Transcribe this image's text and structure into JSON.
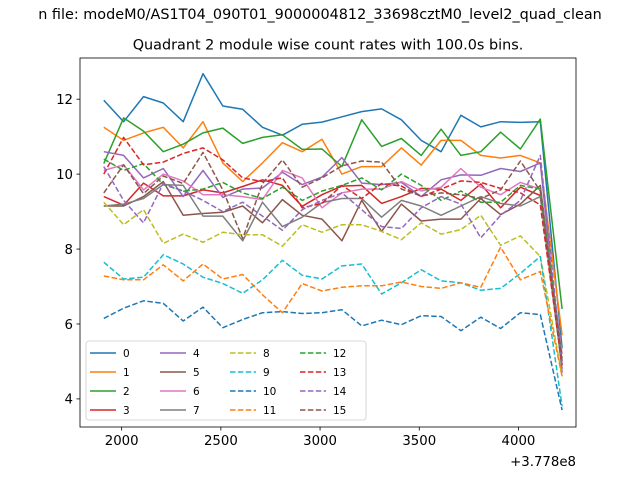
{
  "header": {
    "suptitle": "n file: modeM0/AS1T04_090T01_9000004812_33698cztM0_level2_quad_clean"
  },
  "chart_data": {
    "type": "line",
    "title": "Quadrant 2 module wise count rates with 100.0s bins.",
    "xlabel": "",
    "ylabel": "",
    "x_offset_label": "+3.778e8",
    "xlim": [
      1790,
      4290
    ],
    "ylim": [
      3.25,
      13.1
    ],
    "xticks": [
      2000,
      2500,
      3000,
      3500,
      4000
    ],
    "xtick_labels": [
      "2000",
      "2500",
      "3000",
      "3500",
      "4000"
    ],
    "yticks": [
      4,
      6,
      8,
      10,
      12
    ],
    "ytick_labels": [
      "4",
      "6",
      "8",
      "10",
      "12"
    ],
    "grid": false,
    "legend_position": "lower-left",
    "x": [
      1910,
      2010,
      2110,
      2210,
      2310,
      2410,
      2510,
      2610,
      2710,
      2810,
      2910,
      3010,
      3110,
      3210,
      3310,
      3410,
      3510,
      3610,
      3710,
      3810,
      3910,
      4010,
      4110,
      4220
    ],
    "series": [
      {
        "name": "0",
        "color": "#1f77b4",
        "dash": "solid",
        "values": [
          11.97,
          11.4,
          12.07,
          11.9,
          11.4,
          12.68,
          11.82,
          11.73,
          11.25,
          11.04,
          11.33,
          11.39,
          11.53,
          11.67,
          11.74,
          11.45,
          10.9,
          10.6,
          11.57,
          11.26,
          11.4,
          11.38,
          11.4,
          5.35
        ]
      },
      {
        "name": "1",
        "color": "#ff7f0e",
        "dash": "solid",
        "values": [
          11.25,
          10.9,
          11.1,
          11.25,
          10.7,
          11.4,
          10.3,
          9.8,
          10.3,
          10.84,
          10.6,
          10.93,
          10.0,
          10.2,
          10.2,
          10.7,
          10.24,
          10.9,
          10.9,
          10.5,
          10.43,
          10.5,
          10.3,
          5.7
        ]
      },
      {
        "name": "2",
        "color": "#2ca02c",
        "dash": "solid",
        "values": [
          10.28,
          11.5,
          11.15,
          10.6,
          10.8,
          11.1,
          11.23,
          10.82,
          10.98,
          11.05,
          10.66,
          10.67,
          10.2,
          11.45,
          10.74,
          10.95,
          10.5,
          11.2,
          10.5,
          10.6,
          11.12,
          10.67,
          11.47,
          6.4
        ]
      },
      {
        "name": "3",
        "color": "#d62728",
        "dash": "solid",
        "values": [
          9.4,
          9.17,
          9.76,
          9.42,
          9.42,
          9.58,
          9.5,
          9.67,
          9.85,
          9.7,
          9.14,
          9.45,
          9.68,
          9.7,
          9.22,
          9.4,
          9.62,
          9.6,
          9.3,
          9.74,
          9.1,
          9.65,
          9.43,
          4.9
        ]
      },
      {
        "name": "4",
        "color": "#9467bd",
        "dash": "solid",
        "values": [
          10.6,
          10.5,
          9.9,
          10.15,
          9.4,
          10.1,
          9.38,
          9.6,
          9.63,
          10.05,
          9.72,
          9.92,
          10.44,
          9.76,
          9.72,
          9.78,
          9.4,
          9.85,
          9.98,
          9.97,
          10.15,
          10.07,
          10.3,
          4.7
        ]
      },
      {
        "name": "5",
        "color": "#8c564b",
        "dash": "solid",
        "values": [
          9.15,
          9.15,
          9.4,
          9.8,
          8.9,
          8.95,
          8.98,
          9.15,
          8.7,
          9.32,
          8.9,
          8.8,
          8.22,
          9.3,
          8.47,
          9.2,
          8.75,
          8.8,
          8.8,
          9.35,
          8.92,
          9.2,
          9.7,
          5.0
        ]
      },
      {
        "name": "6",
        "color": "#e377c2",
        "dash": "solid",
        "values": [
          10.1,
          10.25,
          9.58,
          10.0,
          9.82,
          9.45,
          9.45,
          9.4,
          9.32,
          10.1,
          9.9,
          9.1,
          9.5,
          9.6,
          9.6,
          9.8,
          9.55,
          9.65,
          10.15,
          9.65,
          9.45,
          9.78,
          9.6,
          5.2
        ]
      },
      {
        "name": "7",
        "color": "#7f7f7f",
        "dash": "solid",
        "values": [
          9.15,
          9.2,
          9.35,
          9.72,
          9.7,
          8.88,
          8.88,
          8.22,
          9.25,
          8.6,
          8.85,
          9.24,
          9.35,
          9.35,
          8.85,
          9.3,
          9.15,
          8.9,
          9.15,
          9.4,
          9.22,
          9.15,
          9.4,
          4.8
        ]
      },
      {
        "name": "8",
        "color": "#bcbd22",
        "dash": "dashed",
        "values": [
          9.25,
          8.65,
          9.05,
          8.15,
          8.4,
          8.18,
          8.45,
          8.38,
          8.38,
          8.08,
          8.65,
          8.45,
          8.65,
          8.65,
          8.47,
          8.25,
          8.7,
          8.4,
          8.52,
          8.9,
          8.1,
          8.35,
          7.8,
          4.6
        ]
      },
      {
        "name": "9",
        "color": "#17becf",
        "dash": "dashed",
        "values": [
          7.65,
          7.2,
          7.25,
          7.85,
          7.6,
          7.25,
          7.08,
          6.82,
          7.18,
          7.7,
          7.3,
          7.2,
          7.55,
          7.6,
          6.8,
          7.1,
          7.45,
          7.15,
          7.1,
          6.9,
          6.95,
          7.35,
          7.8,
          3.8
        ]
      },
      {
        "name": "10",
        "color": "#1f77b4",
        "dash": "dashed",
        "values": [
          6.15,
          6.42,
          6.62,
          6.55,
          6.08,
          6.45,
          5.9,
          6.12,
          6.3,
          6.33,
          6.28,
          6.3,
          6.38,
          5.95,
          6.1,
          5.98,
          6.22,
          6.2,
          5.82,
          6.18,
          5.88,
          6.3,
          6.25,
          3.7
        ]
      },
      {
        "name": "11",
        "color": "#ff7f0e",
        "dash": "dashed",
        "values": [
          7.28,
          7.18,
          7.18,
          7.58,
          7.15,
          7.6,
          7.2,
          7.32,
          6.78,
          6.3,
          7.08,
          6.88,
          6.98,
          7.02,
          7.02,
          7.12,
          7.0,
          6.95,
          7.1,
          6.98,
          8.05,
          7.18,
          7.4,
          4.6
        ]
      },
      {
        "name": "12",
        "color": "#2ca02c",
        "dash": "dashed",
        "values": [
          10.4,
          10.1,
          10.28,
          9.72,
          9.55,
          9.6,
          9.78,
          9.5,
          9.35,
          9.65,
          9.3,
          9.55,
          9.7,
          9.9,
          9.58,
          10.0,
          9.7,
          9.3,
          9.55,
          9.25,
          9.25,
          9.7,
          9.6,
          5.1
        ]
      },
      {
        "name": "13",
        "color": "#d62728",
        "dash": "dashed",
        "values": [
          10.0,
          10.98,
          10.25,
          10.32,
          10.55,
          10.7,
          10.38,
          9.9,
          9.8,
          9.9,
          9.1,
          9.22,
          9.7,
          9.35,
          9.75,
          9.68,
          9.4,
          9.6,
          9.82,
          9.78,
          9.62,
          9.5,
          9.18,
          4.9
        ]
      },
      {
        "name": "14",
        "color": "#9467bd",
        "dash": "dashed",
        "values": [
          10.2,
          9.3,
          8.7,
          9.75,
          9.55,
          9.3,
          9.0,
          9.25,
          8.88,
          8.5,
          9.05,
          9.3,
          9.5,
          9.05,
          8.6,
          8.55,
          9.1,
          9.4,
          9.2,
          8.3,
          8.9,
          9.3,
          10.5,
          4.9
        ]
      },
      {
        "name": "15",
        "color": "#8c564b",
        "dash": "dashed",
        "values": [
          9.5,
          10.25,
          9.48,
          9.95,
          9.75,
          10.58,
          9.58,
          8.28,
          9.75,
          10.38,
          9.65,
          9.9,
          10.22,
          10.35,
          10.32,
          9.6,
          9.42,
          9.5,
          9.45,
          9.35,
          9.58,
          10.35,
          9.55,
          5.0
        ]
      }
    ]
  }
}
